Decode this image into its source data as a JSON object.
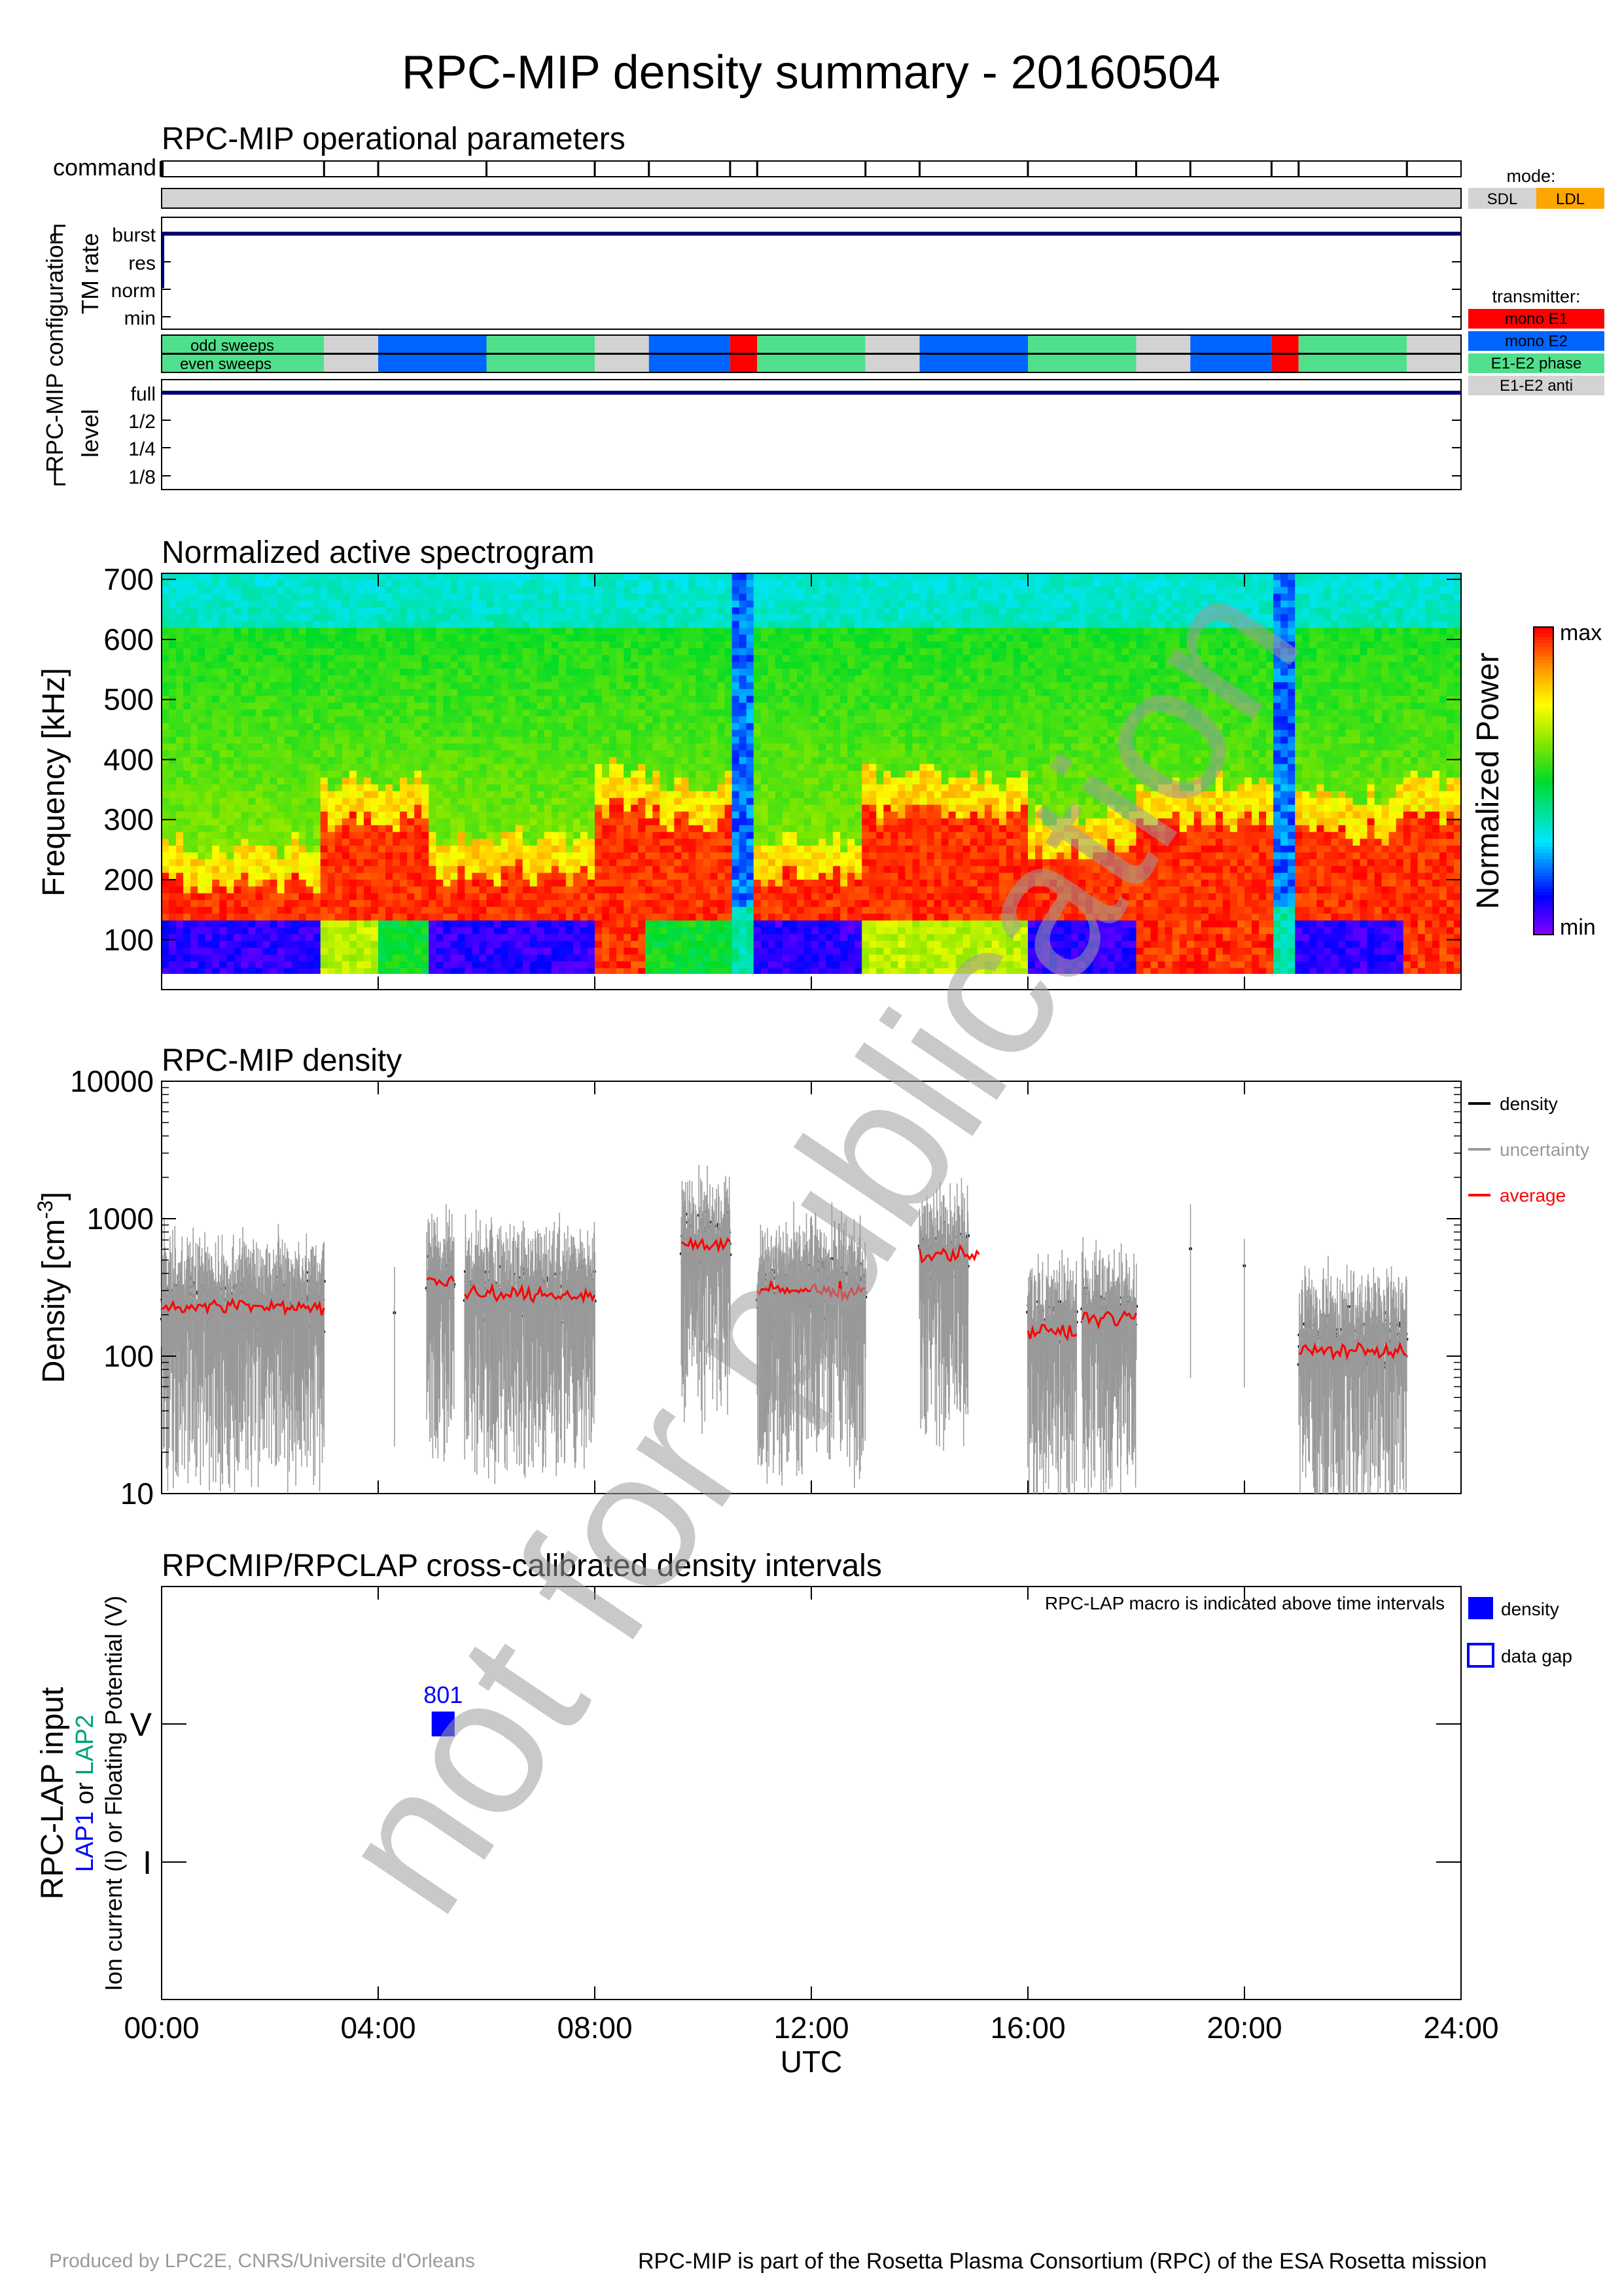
{
  "page": {
    "title": "RPC-MIP density summary - 20160504",
    "footer_left": "Produced by LPC2E, CNRS/Universite d'Orleans",
    "footer_right": "RPC-MIP is part of the Rosetta Plasma Consortium (RPC) of the ESA Rosetta mission",
    "watermark": "not for publication"
  },
  "colors": {
    "navy": "#00006e",
    "sdl": "#d3d3d3",
    "ldl": "#ffa500",
    "mono_e1": "#ff0000",
    "mono_e2": "#0064ff",
    "e1e2_phase": "#50e08c",
    "e1e2_anti": "#d3d3d3",
    "density": "#000000",
    "uncertainty": "#999999",
    "average": "#ff0000",
    "lap1": "#0000ff",
    "lap2": "#00a078",
    "lap_box": "#0000ff"
  },
  "time_axis": {
    "xlabel": "UTC",
    "tick_hours": [
      0,
      4,
      8,
      12,
      16,
      20,
      24
    ],
    "tick_labels": [
      "00:00",
      "04:00",
      "08:00",
      "12:00",
      "16:00",
      "20:00",
      "24:00"
    ]
  },
  "ops": {
    "title": "RPC-MIP operational parameters",
    "command_label": "command",
    "config_label": "RPC-MIP configuration",
    "tm_rate_label": "TM rate",
    "level_label": "level",
    "tm_levels": [
      "burst",
      "res",
      "norm",
      "min"
    ],
    "level_levels": [
      "full",
      "1/2",
      "1/4",
      "1/8"
    ],
    "odd_label": "odd sweeps",
    "even_label": "even sweeps",
    "mode_title": "mode:",
    "mode_sdl": "SDL",
    "mode_ldl": "LDL",
    "transmitter_title": "transmitter:",
    "tx_labels": [
      "mono E1",
      "mono E2",
      "E1-E2 phase",
      "E1-E2 anti"
    ],
    "command_ticks_h": [
      0,
      3,
      4,
      6,
      8,
      9,
      10.5,
      11,
      13,
      14,
      16,
      18,
      19,
      20.5,
      21,
      23
    ],
    "mode_bar": "SDL",
    "tm_rate_value": "burst",
    "level_value": "full",
    "transmitter_segments": [
      {
        "from": 0,
        "to": 3,
        "tx": "E1-E2 phase"
      },
      {
        "from": 3,
        "to": 4,
        "tx": "E1-E2 anti"
      },
      {
        "from": 4,
        "to": 6,
        "tx": "mono E2"
      },
      {
        "from": 6,
        "to": 8,
        "tx": "E1-E2 phase"
      },
      {
        "from": 8,
        "to": 9,
        "tx": "E1-E2 anti"
      },
      {
        "from": 9,
        "to": 10.5,
        "tx": "mono E2"
      },
      {
        "from": 10.5,
        "to": 11,
        "tx": "mono E1"
      },
      {
        "from": 11,
        "to": 13,
        "tx": "E1-E2 phase"
      },
      {
        "from": 13,
        "to": 14,
        "tx": "E1-E2 anti"
      },
      {
        "from": 14,
        "to": 16,
        "tx": "mono E2"
      },
      {
        "from": 16,
        "to": 18,
        "tx": "E1-E2 phase"
      },
      {
        "from": 18,
        "to": 19,
        "tx": "E1-E2 anti"
      },
      {
        "from": 19,
        "to": 20.5,
        "tx": "mono E2"
      },
      {
        "from": 20.5,
        "to": 21,
        "tx": "mono E1"
      },
      {
        "from": 21,
        "to": 23,
        "tx": "E1-E2 phase"
      },
      {
        "from": 23,
        "to": 24,
        "tx": "E1-E2 anti"
      }
    ]
  },
  "spectrogram": {
    "title": "Normalized active spectrogram",
    "ylabel": "Frequency [kHz]",
    "yticks": [
      100,
      200,
      300,
      400,
      500,
      600,
      700
    ],
    "ylim": [
      30,
      710
    ],
    "colorbar_label": "Normalized Power",
    "colorbar_max": "max",
    "colorbar_min": "min"
  },
  "density": {
    "title": "RPC-MIP density",
    "ylabel": "Density [cm",
    "ylabel_sup": "-3",
    "ylabel_end": "]",
    "yticks": [
      10,
      100,
      1000,
      10000
    ],
    "ytick_labels": [
      "10",
      "100",
      "1000",
      "10000"
    ],
    "legend": [
      "density",
      "uncertainty",
      "average"
    ]
  },
  "lap": {
    "title": "RPCMIP/RPCLAP cross-calibrated density intervals",
    "note": "RPC-LAP macro is indicated above time intervals",
    "ylabel_main": "RPC-LAP input",
    "ylabel_lap1": "LAP1",
    "ylabel_or": " or ",
    "ylabel_lap2": "LAP2",
    "ylabel_line2": "Ion current (I) or Floating Potential (V)",
    "row_labels": [
      "V",
      "I"
    ],
    "legend": [
      "density",
      "data gap"
    ],
    "box_label": "801"
  },
  "chart_data": [
    {
      "type": "heatmap",
      "title": "Normalized active spectrogram",
      "xlabel": "UTC",
      "ylabel": "Frequency [kHz]",
      "xlim": [
        0,
        24
      ],
      "ylim": [
        30,
        710
      ],
      "colorbar": "Normalized Power",
      "segments": [
        {
          "from": 0,
          "to": 3,
          "plasma_kHz": 195,
          "low_band": "blue"
        },
        {
          "from": 3,
          "to": 4,
          "plasma_kHz": 300,
          "low_band": "yellow"
        },
        {
          "from": 4,
          "to": 5,
          "plasma_kHz": 300,
          "low_band": "green"
        },
        {
          "from": 5,
          "to": 6,
          "plasma_kHz": 210,
          "low_band": "blue"
        },
        {
          "from": 6,
          "to": 8,
          "plasma_kHz": 210,
          "low_band": "blue"
        },
        {
          "from": 8,
          "to": 9,
          "plasma_kHz": 320,
          "low_band": "red"
        },
        {
          "from": 9,
          "to": 10.5,
          "plasma_kHz": 300,
          "low_band": "green"
        },
        {
          "from": 10.5,
          "to": 11,
          "plasma_kHz": 0,
          "low_band": "blue"
        },
        {
          "from": 11,
          "to": 13,
          "plasma_kHz": 205,
          "low_band": "blue"
        },
        {
          "from": 13,
          "to": 16,
          "plasma_kHz": 310,
          "low_band": "yellow"
        },
        {
          "from": 16,
          "to": 18,
          "plasma_kHz": 250,
          "low_band": "blue"
        },
        {
          "from": 18,
          "to": 20.5,
          "plasma_kHz": 300,
          "low_band": "red"
        },
        {
          "from": 20.5,
          "to": 21,
          "plasma_kHz": 0,
          "low_band": "blue"
        },
        {
          "from": 21,
          "to": 23,
          "plasma_kHz": 280,
          "low_band": "blue"
        },
        {
          "from": 23,
          "to": 24,
          "plasma_kHz": 300,
          "low_band": "red"
        }
      ]
    },
    {
      "type": "scatter",
      "title": "RPC-MIP density",
      "xlabel": "UTC",
      "ylabel": "Density [cm-3]",
      "yscale": "log",
      "xlim": [
        0,
        24
      ],
      "ylim": [
        10,
        10000
      ],
      "series": [
        {
          "name": "density",
          "segments": [
            {
              "from": 0.0,
              "to": 3.0,
              "level": 230
            },
            {
              "from": 4.3,
              "to": 4.3,
              "level": 190
            },
            {
              "from": 4.9,
              "to": 5.4,
              "level": 350
            },
            {
              "from": 5.6,
              "to": 8.0,
              "level": 280
            },
            {
              "from": 9.6,
              "to": 10.5,
              "level": 650
            },
            {
              "from": 11.0,
              "to": 13.0,
              "level": 300
            },
            {
              "from": 14.0,
              "to": 14.9,
              "level": 550
            },
            {
              "from": 16.0,
              "to": 16.9,
              "level": 160
            },
            {
              "from": 17.0,
              "to": 18.0,
              "level": 190
            },
            {
              "from": 19.0,
              "to": 19.0,
              "level": 470
            },
            {
              "from": 20.0,
              "to": 20.0,
              "level": 380
            },
            {
              "from": 21.0,
              "to": 23.0,
              "level": 130
            }
          ]
        },
        {
          "name": "average",
          "segments": [
            {
              "from": 0.0,
              "to": 3.0,
              "level": 230
            },
            {
              "from": 4.9,
              "to": 5.4,
              "level": 350
            },
            {
              "from": 5.6,
              "to": 8.0,
              "level": 280
            },
            {
              "from": 9.6,
              "to": 10.5,
              "level": 650
            },
            {
              "from": 11.0,
              "to": 13.0,
              "level": 300
            },
            {
              "from": 14.0,
              "to": 15.1,
              "level": 550
            },
            {
              "from": 16.0,
              "to": 16.9,
              "level": 150
            },
            {
              "from": 17.0,
              "to": 18.0,
              "level": 190
            },
            {
              "from": 21.0,
              "to": 23.0,
              "level": 110
            }
          ]
        }
      ]
    },
    {
      "type": "bar",
      "title": "RPCMIP/RPCLAP cross-calibrated density intervals",
      "xlabel": "UTC",
      "ylabel": "RPC-LAP input",
      "categories": [
        "V",
        "I"
      ],
      "intervals": [
        {
          "row": "V",
          "from": 5.0,
          "to": 5.4,
          "macro": "801",
          "status": "density"
        }
      ]
    }
  ]
}
